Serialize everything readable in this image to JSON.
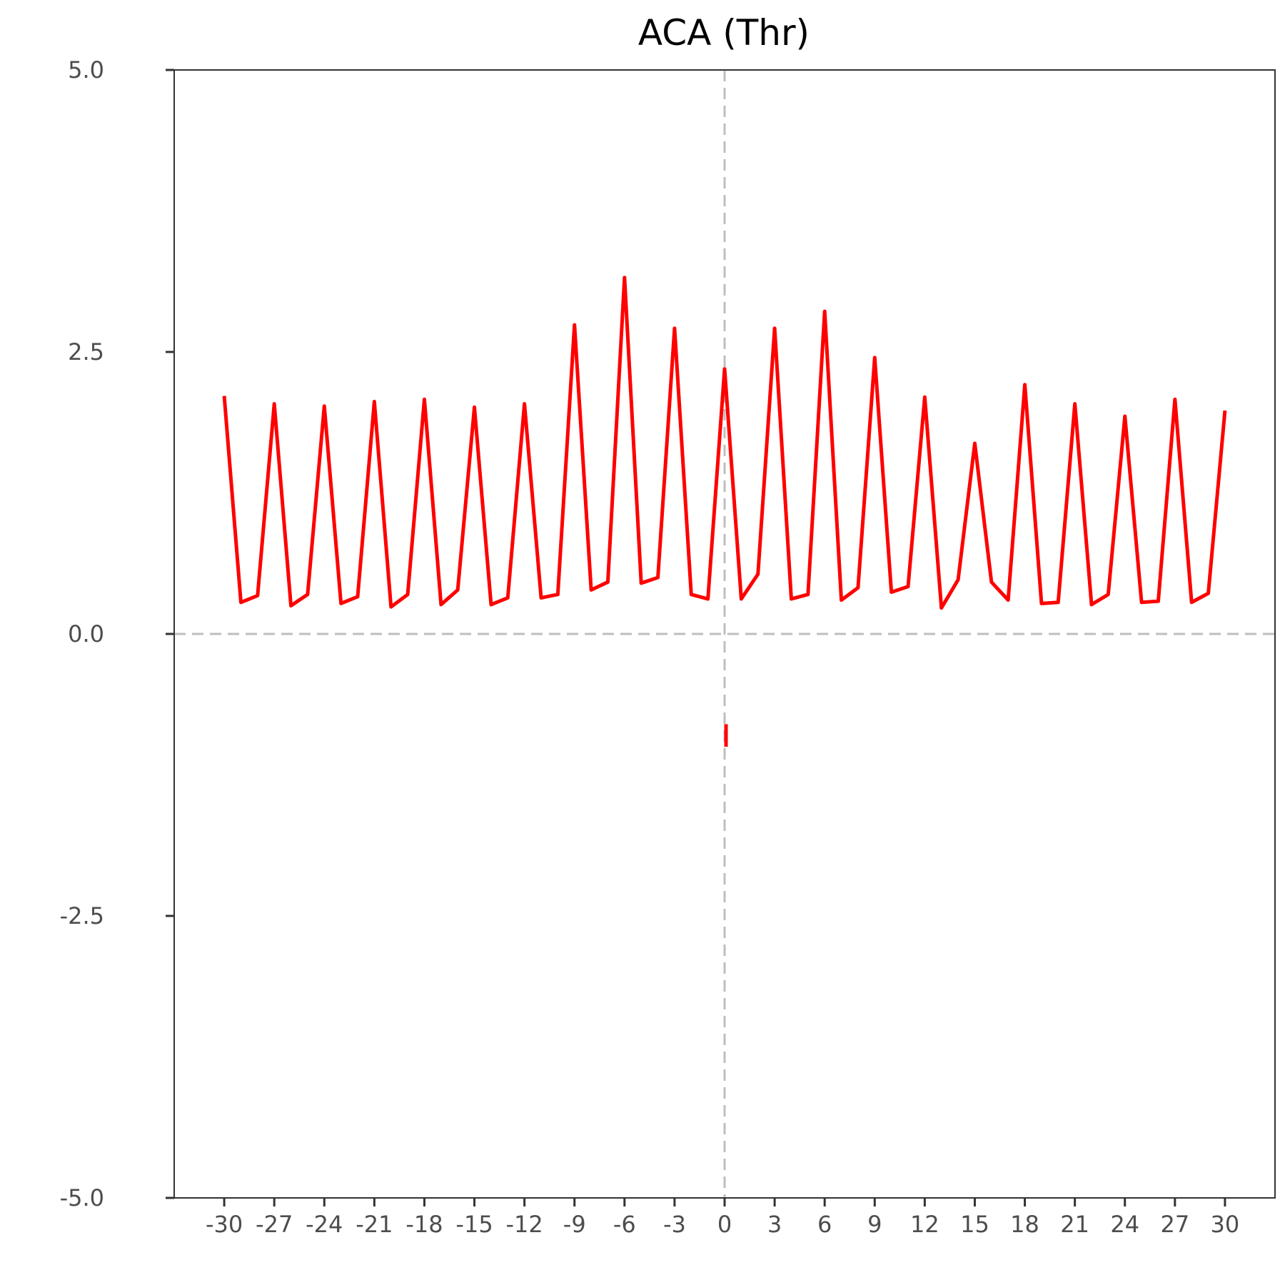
{
  "chart_data": {
    "type": "line",
    "title": "ACA (Thr)",
    "xlabel": "",
    "ylabel": "",
    "xlim": [
      -33,
      33
    ],
    "ylim": [
      -5,
      5
    ],
    "x_ticks": [
      -30,
      -27,
      -24,
      -21,
      -18,
      -15,
      -12,
      -9,
      -6,
      -3,
      0,
      3,
      6,
      9,
      12,
      15,
      18,
      21,
      24,
      27,
      30
    ],
    "y_ticks": [
      5.0,
      2.5,
      0.0,
      -2.5,
      -5.0
    ],
    "y_tick_labels": [
      "5.0",
      "2.5",
      "0.0",
      "-2.5",
      "-5.0"
    ],
    "grid": false,
    "reference_lines": {
      "x": 0,
      "y": 0,
      "style": "dashed",
      "color": "#bebebe"
    },
    "series": [
      {
        "color": "#ff0000",
        "x": [
          -30,
          -29,
          -28,
          -27,
          -26,
          -25,
          -24,
          -23,
          -22,
          -21,
          -20,
          -19,
          -18,
          -17,
          -16,
          -15,
          -14,
          -13,
          -12,
          -11,
          -10,
          -9,
          -8,
          -7,
          -6,
          -5,
          -4,
          -3,
          -2,
          -1,
          0,
          1,
          2,
          3,
          4,
          5,
          6,
          7,
          8,
          9,
          10,
          11,
          12,
          13,
          14,
          15,
          16,
          17,
          18,
          19,
          20,
          21,
          22,
          23,
          24,
          25,
          26,
          27,
          28,
          29,
          30
        ],
        "values": [
          2.11,
          0.28,
          0.34,
          2.04,
          0.25,
          0.35,
          2.02,
          0.27,
          0.33,
          2.06,
          0.24,
          0.35,
          2.08,
          0.26,
          0.39,
          2.01,
          0.26,
          0.32,
          2.04,
          0.32,
          0.35,
          2.74,
          0.39,
          0.46,
          3.16,
          0.45,
          0.5,
          2.71,
          0.35,
          0.31,
          2.35,
          0.31,
          0.53,
          2.71,
          0.31,
          0.35,
          2.86,
          0.3,
          0.41,
          2.45,
          0.37,
          0.42,
          2.1,
          0.23,
          0.48,
          1.69,
          0.46,
          0.3,
          2.21,
          0.27,
          0.28,
          2.04,
          0.26,
          0.35,
          1.93,
          0.28,
          0.29,
          2.08,
          0.28,
          0.36,
          1.98
        ]
      },
      {
        "color": "#ff0000",
        "x": [
          0,
          0
        ],
        "values": [
          -0.8,
          -1.0
        ]
      }
    ]
  }
}
